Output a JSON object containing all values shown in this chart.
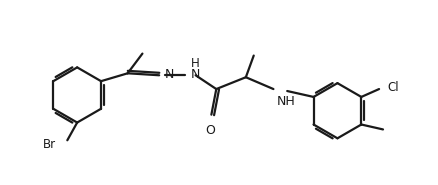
{
  "bg_color": "#ffffff",
  "line_color": "#1a1a1a",
  "lw": 1.6,
  "figsize": [
    4.39,
    1.85
  ],
  "dpi": 100,
  "label_Br": "Br",
  "label_N1": "N",
  "label_N2": "N",
  "label_H": "H",
  "label_O": "O",
  "label_NH": "NH",
  "label_Cl": "Cl"
}
